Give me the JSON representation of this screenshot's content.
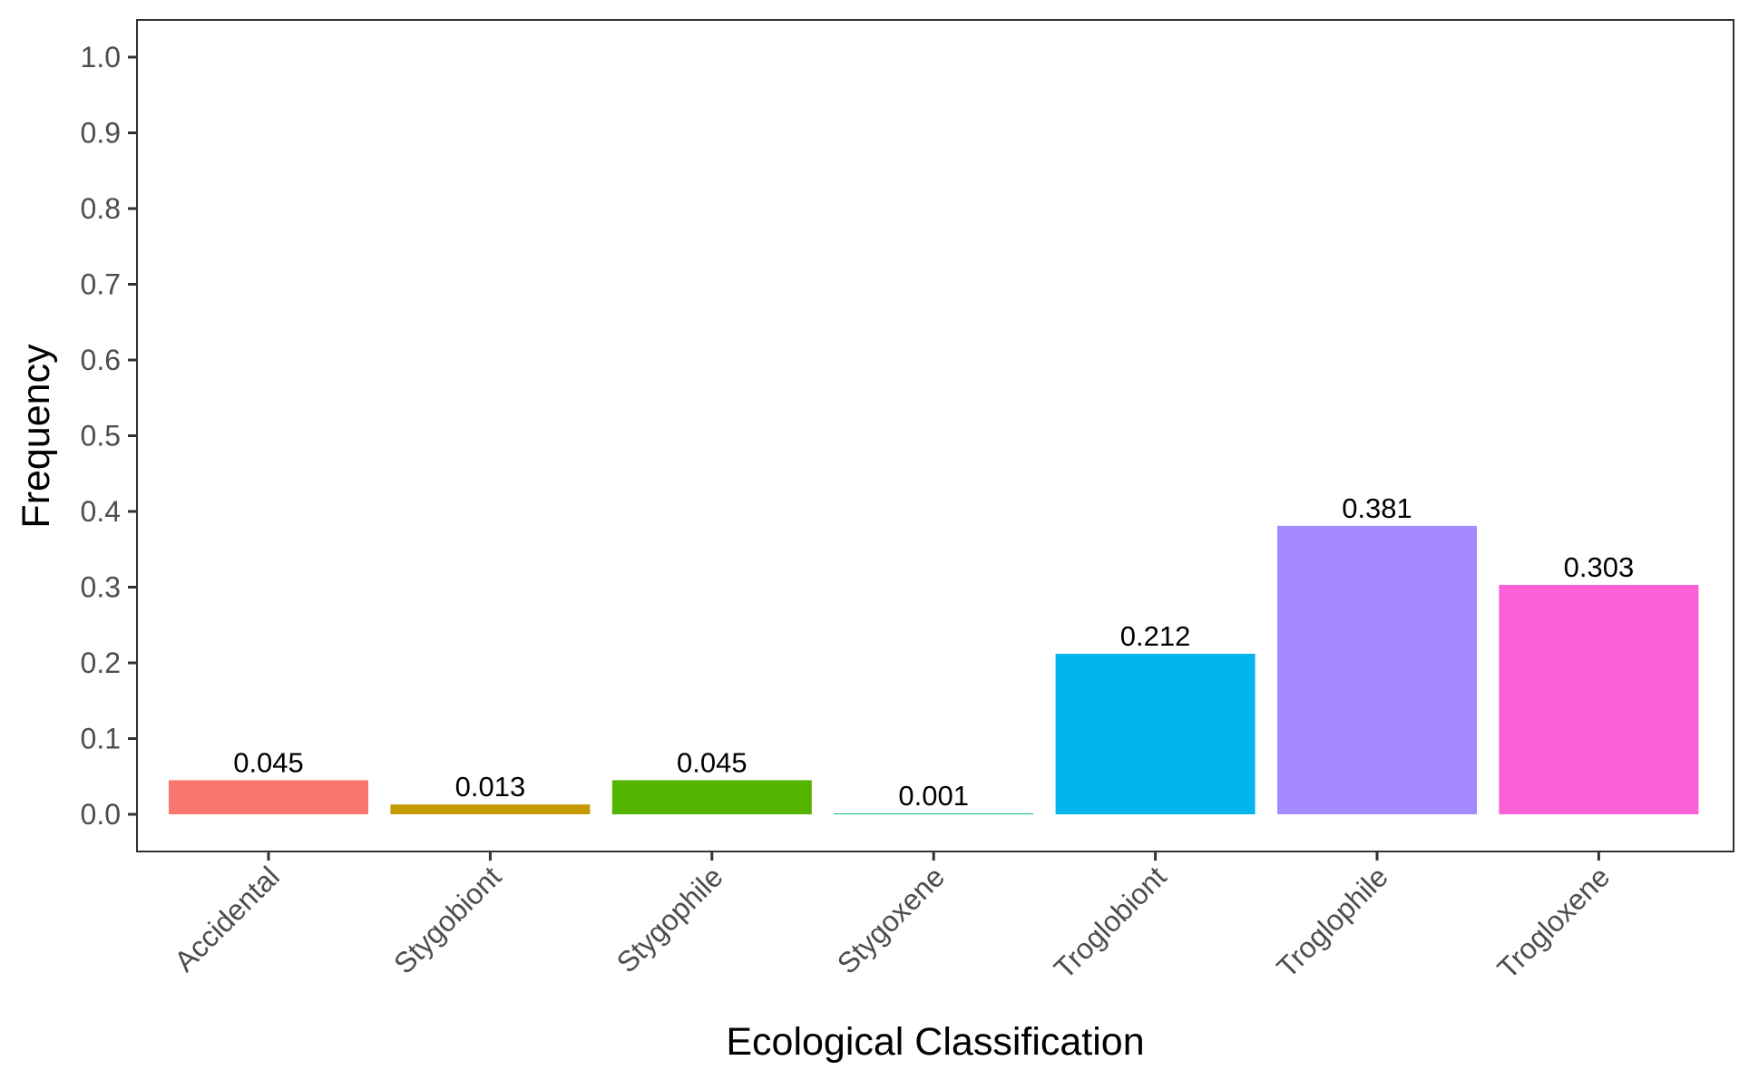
{
  "chart_data": {
    "type": "bar",
    "title": "",
    "xlabel": "Ecological Classification",
    "ylabel": "Frequency",
    "ylim": [
      0,
      1.0
    ],
    "y_ticks": [
      "0.0",
      "0.1",
      "0.2",
      "0.3",
      "0.4",
      "0.5",
      "0.6",
      "0.7",
      "0.8",
      "0.9",
      "1.0"
    ],
    "grid": false,
    "legend": "none",
    "categories": [
      "Accidental",
      "Stygobiont",
      "Stygophile",
      "Stygoxene",
      "Troglobiont",
      "Troglophile",
      "Trogloxene"
    ],
    "values": [
      0.045,
      0.013,
      0.045,
      0.001,
      0.212,
      0.381,
      0.303
    ],
    "value_labels": [
      "0.045",
      "0.013",
      "0.045",
      "0.001",
      "0.212",
      "0.381",
      "0.303"
    ],
    "colors": [
      "#F8766D",
      "#C49A00",
      "#53B400",
      "#00C094",
      "#00B6EB",
      "#A58AFF",
      "#FB61D7"
    ]
  }
}
